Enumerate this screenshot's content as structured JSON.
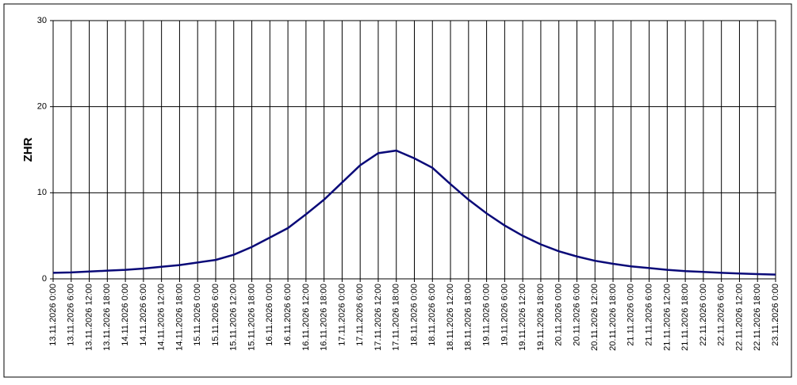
{
  "chart_data": {
    "type": "line",
    "y_label": "ZHR",
    "categories": [
      "13.11.2026 0:00",
      "13.11.2026 6:00",
      "13.11.2026 12:00",
      "13.11.2026 18:00",
      "14.11.2026 0:00",
      "14.11.2026 6:00",
      "14.11.2026 12:00",
      "14.11.2026 18:00",
      "15.11.2026 0:00",
      "15.11.2026 6:00",
      "15.11.2026 12:00",
      "15.11.2026 18:00",
      "16.11.2026 0:00",
      "16.11.2026 6:00",
      "16.11.2026 12:00",
      "16.11.2026 18:00",
      "17.11.2026 0:00",
      "17.11.2026 6:00",
      "17.11.2026 12:00",
      "17.11.2026 18:00",
      "18.11.2026 0:00",
      "18.11.2026 6:00",
      "18.11.2026 12:00",
      "18.11.2026 18:00",
      "19.11.2026 0:00",
      "19.11.2026 6:00",
      "19.11.2026 12:00",
      "19.11.2026 18:00",
      "20.11.2026 0:00",
      "20.11.2026 6:00",
      "20.11.2026 12:00",
      "20.11.2026 18:00",
      "21.11.2026 0:00",
      "21.11.2026 6:00",
      "21.11.2026 12:00",
      "21.11.2026 18:00",
      "22.11.2026 0:00",
      "22.11.2026 6:00",
      "22.11.2026 12:00",
      "22.11.2026 18:00",
      "23.11.2026 0:00"
    ],
    "series": [
      {
        "color": "#0a0a78",
        "values": [
          0.7,
          0.75,
          0.85,
          0.95,
          1.05,
          1.2,
          1.4,
          1.6,
          1.9,
          2.2,
          2.8,
          3.7,
          4.8,
          5.9,
          7.5,
          9.2,
          11.2,
          13.2,
          14.6,
          14.9,
          14.0,
          12.9,
          11.0,
          9.2,
          7.6,
          6.2,
          5.0,
          4.0,
          3.2,
          2.6,
          2.1,
          1.75,
          1.45,
          1.25,
          1.05,
          0.9,
          0.8,
          0.7,
          0.62,
          0.55,
          0.5
        ]
      }
    ],
    "ylim": [
      0,
      30
    ],
    "yticks": [
      0,
      10,
      20,
      30
    ],
    "grid": true
  }
}
